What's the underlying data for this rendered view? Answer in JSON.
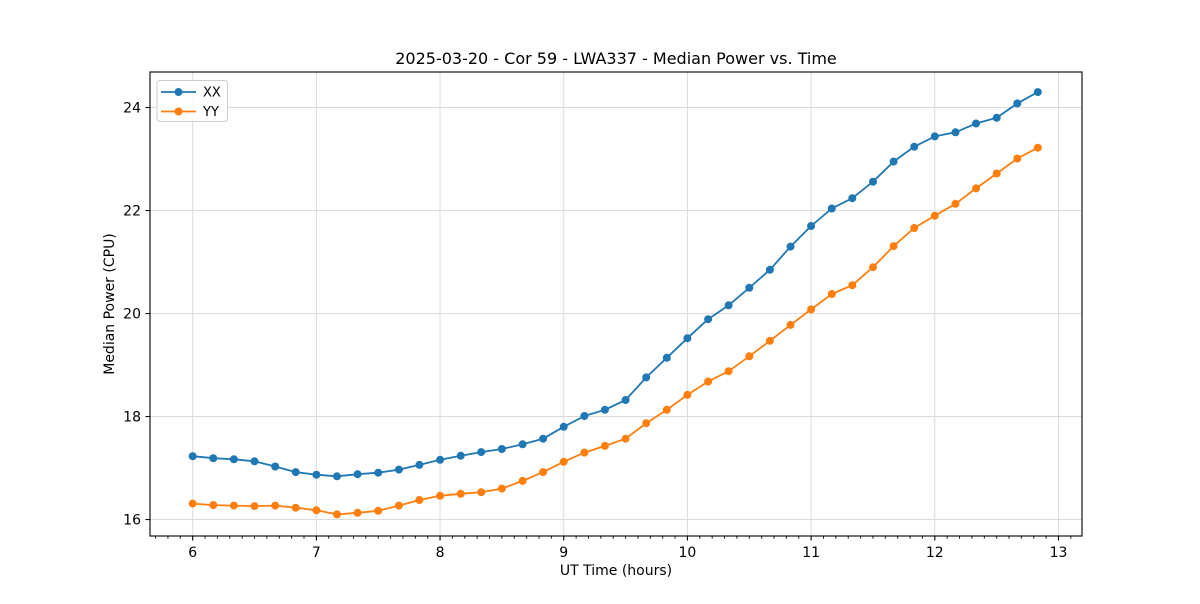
{
  "chart_data": {
    "type": "line",
    "title": "2025-03-20 - Cor 59 - LWA337 - Median Power vs. Time",
    "xlabel": "UT Time (hours)",
    "ylabel": "Median Power (CPU)",
    "x": [
      6.0,
      6.167,
      6.333,
      6.5,
      6.667,
      6.833,
      7.0,
      7.167,
      7.333,
      7.5,
      7.667,
      7.833,
      8.0,
      8.167,
      8.333,
      8.5,
      8.667,
      8.833,
      9.0,
      9.167,
      9.333,
      9.5,
      9.667,
      9.833,
      10.0,
      10.167,
      10.333,
      10.5,
      10.667,
      10.833,
      11.0,
      11.167,
      11.333,
      11.5,
      11.667,
      11.833,
      12.0,
      12.167,
      12.333,
      12.5,
      12.667,
      12.833
    ],
    "series": [
      {
        "name": "XX",
        "color": "#1f77b4",
        "values": [
          17.23,
          17.19,
          17.17,
          17.13,
          17.03,
          16.92,
          16.87,
          16.84,
          16.88,
          16.91,
          16.97,
          17.06,
          17.16,
          17.24,
          17.31,
          17.37,
          17.46,
          17.57,
          17.8,
          18.01,
          18.13,
          18.32,
          18.76,
          19.14,
          19.52,
          19.89,
          20.16,
          20.5,
          20.85,
          21.3,
          21.7,
          22.04,
          22.24,
          22.56,
          22.95,
          23.24,
          23.44,
          23.52,
          23.69,
          23.8,
          24.08,
          24.3
        ]
      },
      {
        "name": "YY",
        "color": "#ff7f0e",
        "values": [
          16.31,
          16.28,
          16.27,
          16.26,
          16.27,
          16.23,
          16.18,
          16.1,
          16.13,
          16.17,
          16.27,
          16.38,
          16.46,
          16.5,
          16.53,
          16.6,
          16.75,
          16.92,
          17.12,
          17.3,
          17.43,
          17.57,
          17.87,
          18.13,
          18.42,
          18.68,
          18.88,
          19.17,
          19.47,
          19.78,
          20.08,
          20.38,
          20.55,
          20.9,
          21.31,
          21.66,
          21.9,
          22.13,
          22.43,
          22.72,
          23.01,
          23.22
        ]
      }
    ],
    "xlim": [
      5.655,
      13.19
    ],
    "ylim": [
      15.68,
      24.69
    ],
    "x_ticks": [
      6,
      7,
      8,
      9,
      10,
      11,
      12,
      13
    ],
    "y_ticks": [
      16,
      18,
      20,
      22,
      24
    ],
    "x_minor_step": 0.1,
    "grid": true,
    "grid_color": "#dcdcdc",
    "spine_color": "#000000",
    "background": "#ffffff",
    "legend_position": "upper left",
    "marker": "circle",
    "marker_size": 4,
    "line_width": 1.8
  }
}
